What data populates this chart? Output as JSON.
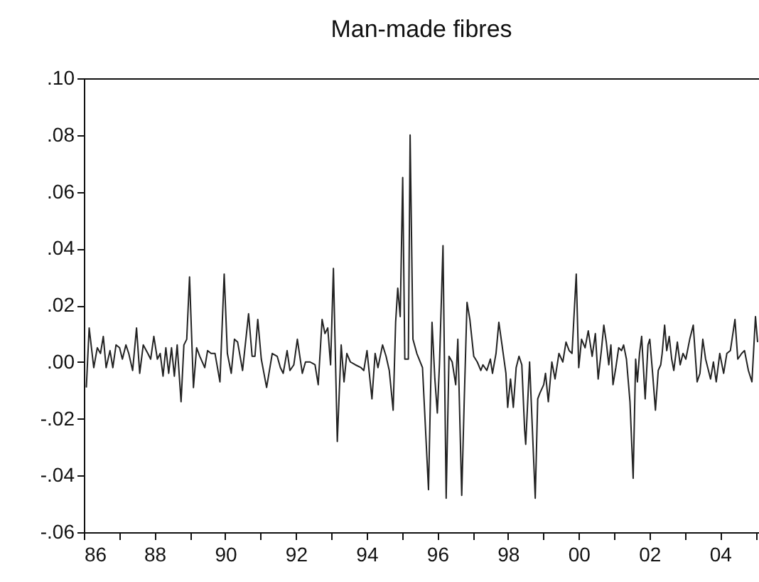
{
  "chart_data": {
    "type": "line",
    "title": "Man-made fibres",
    "x": [
      1986.07,
      1986.15,
      1986.28,
      1986.38,
      1986.47,
      1986.55,
      1986.63,
      1986.74,
      1986.82,
      1986.91,
      1987.01,
      1987.09,
      1987.19,
      1987.27,
      1987.38,
      1987.49,
      1987.58,
      1987.68,
      1987.81,
      1987.89,
      1987.98,
      1988.08,
      1988.16,
      1988.24,
      1988.32,
      1988.4,
      1988.48,
      1988.56,
      1988.64,
      1988.75,
      1988.83,
      1988.91,
      1988.99,
      1989.1,
      1989.19,
      1989.28,
      1989.42,
      1989.5,
      1989.6,
      1989.71,
      1989.85,
      1989.97,
      1990.06,
      1990.17,
      1990.26,
      1990.35,
      1990.49,
      1990.66,
      1990.76,
      1990.84,
      1990.92,
      1991.02,
      1991.17,
      1991.33,
      1991.47,
      1991.56,
      1991.64,
      1991.75,
      1991.83,
      1991.94,
      1992.04,
      1992.18,
      1992.27,
      1992.4,
      1992.54,
      1992.63,
      1992.74,
      1992.82,
      1992.9,
      1992.98,
      1993.06,
      1993.17,
      1993.28,
      1993.36,
      1993.44,
      1993.54,
      1993.68,
      1993.84,
      1993.92,
      1994.01,
      1994.15,
      1994.24,
      1994.32,
      1994.45,
      1994.55,
      1994.64,
      1994.75,
      1994.82,
      1994.88,
      1994.95,
      1995.02,
      1995.08,
      1995.18,
      1995.23,
      1995.31,
      1995.42,
      1995.58,
      1995.75,
      1995.85,
      1995.93,
      1996.0,
      1996.06,
      1996.16,
      1996.25,
      1996.33,
      1996.42,
      1996.52,
      1996.58,
      1996.69,
      1996.76,
      1996.84,
      1996.92,
      1997.03,
      1997.13,
      1997.23,
      1997.29,
      1997.4,
      1997.5,
      1997.56,
      1997.66,
      1997.74,
      1997.83,
      1997.94,
      1997.99,
      1998.07,
      1998.15,
      1998.23,
      1998.31,
      1998.39,
      1998.47,
      1998.5,
      1998.61,
      1998.77,
      1998.84,
      1998.9,
      1999.01,
      1999.06,
      1999.14,
      1999.24,
      1999.33,
      1999.44,
      1999.55,
      1999.64,
      1999.73,
      1999.81,
      1999.93,
      2000.0,
      2000.08,
      2000.18,
      2000.27,
      2000.38,
      2000.47,
      2000.55,
      2000.64,
      2000.71,
      2000.78,
      2000.85,
      2000.91,
      2000.97,
      2001.05,
      2001.13,
      2001.21,
      2001.27,
      2001.35,
      2001.45,
      2001.54,
      2001.61,
      2001.66,
      2001.72,
      2001.78,
      2001.88,
      2001.96,
      2002.01,
      2002.09,
      2002.17,
      2002.25,
      2002.32,
      2002.36,
      2002.43,
      2002.49,
      2002.56,
      2002.63,
      2002.69,
      2002.79,
      2002.87,
      2002.95,
      2003.03,
      2003.14,
      2003.24,
      2003.35,
      2003.43,
      2003.51,
      2003.59,
      2003.73,
      2003.81,
      2003.89,
      2003.99,
      2004.1,
      2004.19,
      2004.29,
      2004.42,
      2004.5,
      2004.61,
      2004.69,
      2004.8,
      2004.9,
      2005.0,
      2005.06
    ],
    "values": [
      -0.009,
      0.012,
      -0.002,
      0.005,
      0.003,
      0.009,
      -0.002,
      0.004,
      -0.002,
      0.006,
      0.005,
      0.001,
      0.006,
      0.003,
      -0.003,
      0.012,
      -0.004,
      0.006,
      0.003,
      0.001,
      0.009,
      0.001,
      0.003,
      -0.005,
      0.005,
      -0.004,
      0.005,
      -0.005,
      0.006,
      -0.014,
      0.006,
      0.008,
      0.03,
      -0.009,
      0.005,
      0.002,
      -0.002,
      0.004,
      0.003,
      0.003,
      -0.007,
      0.031,
      0.003,
      -0.004,
      0.008,
      0.007,
      -0.003,
      0.017,
      0.002,
      0.002,
      0.015,
      0.001,
      -0.009,
      0.003,
      0.002,
      -0.002,
      -0.004,
      0.004,
      -0.003,
      -0.001,
      0.008,
      -0.004,
      0.0,
      0.0,
      -0.001,
      -0.008,
      0.015,
      0.01,
      0.012,
      -0.001,
      0.033,
      -0.028,
      0.006,
      -0.007,
      0.003,
      0.0,
      -0.001,
      -0.002,
      -0.003,
      0.004,
      -0.013,
      0.003,
      -0.002,
      0.006,
      0.002,
      -0.003,
      -0.017,
      0.014,
      0.026,
      0.016,
      0.065,
      0.001,
      0.001,
      0.08,
      0.008,
      0.003,
      -0.002,
      -0.045,
      0.014,
      -0.006,
      -0.018,
      -0.001,
      0.041,
      -0.048,
      0.002,
      0.0,
      -0.008,
      0.008,
      -0.047,
      -0.014,
      0.021,
      0.015,
      0.002,
      0.0,
      -0.003,
      -0.001,
      -0.003,
      0.001,
      -0.004,
      0.003,
      0.014,
      0.006,
      -0.004,
      -0.016,
      -0.006,
      -0.016,
      -0.002,
      0.002,
      -0.001,
      -0.024,
      -0.029,
      0.0,
      -0.048,
      -0.013,
      -0.011,
      -0.008,
      -0.004,
      -0.014,
      0.0,
      -0.006,
      0.003,
      0.0,
      0.007,
      0.004,
      0.003,
      0.031,
      -0.002,
      0.008,
      0.005,
      0.011,
      0.002,
      0.01,
      -0.006,
      0.004,
      0.013,
      0.007,
      -0.001,
      0.006,
      -0.008,
      -0.002,
      0.005,
      0.004,
      0.006,
      0.001,
      -0.014,
      -0.041,
      0.001,
      -0.007,
      0.003,
      0.009,
      -0.013,
      0.006,
      0.008,
      -0.004,
      -0.017,
      -0.003,
      -0.001,
      0.003,
      0.013,
      0.004,
      0.009,
      0.001,
      -0.003,
      0.007,
      -0.001,
      0.003,
      0.001,
      0.008,
      0.013,
      -0.007,
      -0.004,
      0.008,
      0.001,
      -0.006,
      0.0,
      -0.007,
      0.003,
      -0.004,
      0.003,
      0.004,
      0.015,
      0.001,
      0.003,
      0.004,
      -0.003,
      -0.007,
      0.016,
      0.007
    ],
    "color": "#222222",
    "xlim": [
      1986,
      2005.1
    ],
    "xticks": [
      {
        "value": 1986,
        "label": "86"
      },
      {
        "value": 1987,
        "label": null
      },
      {
        "value": 1988,
        "label": "88"
      },
      {
        "value": 1989,
        "label": null
      },
      {
        "value": 1990,
        "label": "90"
      },
      {
        "value": 1991,
        "label": null
      },
      {
        "value": 1992,
        "label": "92"
      },
      {
        "value": 1993,
        "label": null
      },
      {
        "value": 1994,
        "label": "94"
      },
      {
        "value": 1995,
        "label": null
      },
      {
        "value": 1996,
        "label": "96"
      },
      {
        "value": 1997,
        "label": null
      },
      {
        "value": 1998,
        "label": "98"
      },
      {
        "value": 1999,
        "label": null
      },
      {
        "value": 2000,
        "label": "00"
      },
      {
        "value": 2001,
        "label": null
      },
      {
        "value": 2002,
        "label": "02"
      },
      {
        "value": 2003,
        "label": null
      },
      {
        "value": 2004,
        "label": "04"
      },
      {
        "value": 2005,
        "label": null
      }
    ],
    "ylim": [
      -0.06,
      0.1
    ],
    "yticks": [
      {
        "value": -0.06,
        "label": "-.06"
      },
      {
        "value": -0.04,
        "label": "-.04"
      },
      {
        "value": -0.02,
        "label": "-.02"
      },
      {
        "value": 0,
        "label": ".00"
      },
      {
        "value": 0.02,
        "label": ".02"
      },
      {
        "value": 0.04,
        "label": ".04"
      },
      {
        "value": 0.06,
        "label": ".06"
      },
      {
        "value": 0.08,
        "label": ".08"
      },
      {
        "value": 0.1,
        "label": ".10"
      }
    ],
    "line_style": "solid",
    "marker": "none"
  }
}
